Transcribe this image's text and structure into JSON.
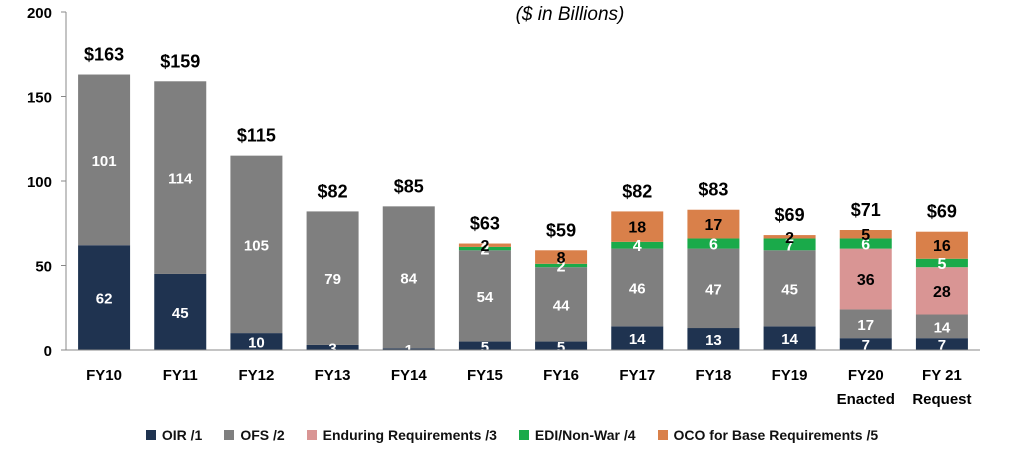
{
  "chart_data": {
    "type": "bar",
    "stacked": true,
    "title": "",
    "subtitle": "($ in Billions)",
    "xlabel": "",
    "ylabel": "",
    "ylim": [
      0,
      200
    ],
    "yticks": [
      0,
      50,
      100,
      150,
      200
    ],
    "grid": false,
    "legend_position": "bottom",
    "categories": [
      [
        "FY10"
      ],
      [
        "FY11"
      ],
      [
        "FY12"
      ],
      [
        "FY13"
      ],
      [
        "FY14"
      ],
      [
        "FY15"
      ],
      [
        "FY16"
      ],
      [
        "FY17"
      ],
      [
        "FY18"
      ],
      [
        "FY19"
      ],
      [
        "FY20",
        "Enacted"
      ],
      [
        "FY 21",
        "Request"
      ]
    ],
    "totals": [
      "$163",
      "$159",
      "$115",
      "$82",
      "$85",
      "$63",
      "$59",
      "$82",
      "$83",
      "$69",
      "$71",
      "$69"
    ],
    "series": [
      {
        "name": "OIR /1",
        "color": "#1f3350",
        "values": [
          62,
          45,
          10,
          3,
          1,
          5,
          5,
          14,
          13,
          14,
          7,
          7
        ]
      },
      {
        "name": "OFS  /2",
        "color": "#7f7f7f",
        "values": [
          101,
          114,
          105,
          79,
          84,
          54,
          44,
          46,
          47,
          45,
          17,
          14
        ]
      },
      {
        "name": "Enduring Requirements /3",
        "color": "#d99594",
        "values": [
          0,
          0,
          0,
          0,
          0,
          0,
          0,
          0,
          0,
          0,
          36,
          28
        ]
      },
      {
        "name": "EDI/Non-War /4",
        "color": "#1aaa4a",
        "values": [
          0,
          0,
          0,
          0,
          0,
          2,
          2,
          4,
          6,
          7,
          6,
          5
        ]
      },
      {
        "name": "OCO for Base Requirements /5",
        "color": "#d9804a",
        "values": [
          0,
          0,
          0,
          0,
          0,
          2,
          8,
          18,
          17,
          2,
          5,
          16
        ]
      }
    ]
  }
}
